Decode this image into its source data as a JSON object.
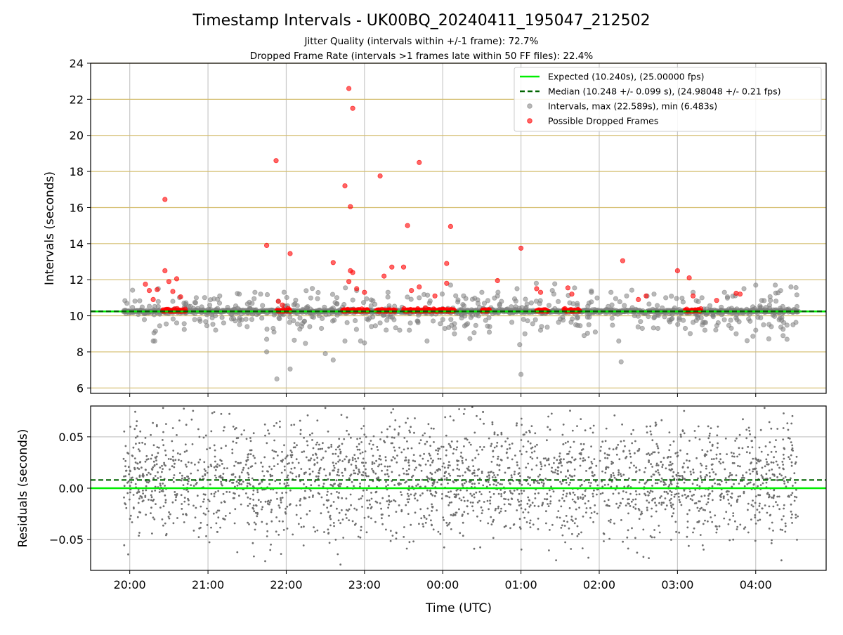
{
  "chart_data": [
    {
      "type": "scatter",
      "panel": "top",
      "title": "Timestamp Intervals - UK00BQ_20240411_195047_212502",
      "subtitle_lines": [
        "Jitter Quality (intervals within +/-1 frame): 72.7%",
        "Dropped Frame Rate (intervals >1 frames late within 50 FF files): 22.4%"
      ],
      "xlabel": "",
      "ylabel": "Intervals (seconds)",
      "x_unit": "hours since 20:00 UTC",
      "xlim": [
        -0.5,
        8.9
      ],
      "ylim": [
        5.7,
        24
      ],
      "y_ticks": [
        6,
        8,
        10,
        12,
        14,
        16,
        18,
        20,
        22,
        24
      ],
      "y_grid": true,
      "x_grid": true,
      "expected": 10.24,
      "median": 10.248,
      "legend_position": "upper right",
      "legend": [
        "Expected (10.240s), (25.00000 fps)",
        "Median (10.248 +/- 0.099 s), (24.98048 +/- 0.21 fps)",
        "Intervals, max (22.589s), min (6.483s)",
        "Possible Dropped Frames"
      ],
      "x_range_data": [
        -0.08,
        4.55
      ],
      "series": [
        {
          "name": "Intervals, max (22.589s), min (6.483s)",
          "color": "#808080",
          "points": [
            [
              0.3,
              8.6
            ],
            [
              0.32,
              8.6
            ],
            [
              1.75,
              8.7
            ],
            [
              1.75,
              8.0
            ],
            [
              1.88,
              6.5
            ],
            [
              2.05,
              7.05
            ],
            [
              2.5,
              7.9
            ],
            [
              2.6,
              7.55
            ],
            [
              2.75,
              8.6
            ],
            [
              2.95,
              8.6
            ],
            [
              3.0,
              8.5
            ],
            [
              3.8,
              8.6
            ],
            [
              4.15,
              9.0
            ],
            [
              5.0,
              6.75
            ],
            [
              5.95,
              9.1
            ],
            [
              6.25,
              8.6
            ],
            [
              6.28,
              7.45
            ],
            [
              6.55,
              9.3
            ],
            [
              6.75,
              9.3
            ],
            [
              7.1,
              9.3
            ],
            [
              7.35,
              9.2
            ],
            [
              7.75,
              9.0
            ],
            [
              8.0,
              9.2
            ],
            [
              8.35,
              8.9
            ],
            [
              8.4,
              8.7
            ],
            [
              0.6,
              9.6
            ],
            [
              0.9,
              9.7
            ],
            [
              1.2,
              9.6
            ],
            [
              1.5,
              9.4
            ],
            [
              2.3,
              9.4
            ],
            [
              2.45,
              9.3
            ],
            [
              3.2,
              9.6
            ],
            [
              3.45,
              9.2
            ],
            [
              4.3,
              9.5
            ],
            [
              4.6,
              9.4
            ],
            [
              5.05,
              9.0
            ],
            [
              5.25,
              9.2
            ],
            [
              5.7,
              9.5
            ],
            [
              8.1,
              9.5
            ],
            [
              8.2,
              9.4
            ],
            [
              2.9,
              11.4
            ],
            [
              2.4,
              10.95
            ],
            [
              1.6,
              11.3
            ],
            [
              3.3,
              11.3
            ],
            [
              4.5,
              11.3
            ],
            [
              4.7,
              11.1
            ],
            [
              4.95,
              11.5
            ],
            [
              5.4,
              11.4
            ],
            [
              5.9,
              11.3
            ],
            [
              6.15,
              11.3
            ],
            [
              6.35,
              11.1
            ],
            [
              6.7,
              11.2
            ],
            [
              6.85,
              11.0
            ],
            [
              7.2,
              11.3
            ],
            [
              7.6,
              11.3
            ],
            [
              7.85,
              11.5
            ],
            [
              8.0,
              11.7
            ],
            [
              8.25,
              11.7
            ],
            [
              8.45,
              11.6
            ],
            [
              0.85,
              11.0
            ],
            [
              1.15,
              11.1
            ],
            [
              1.4,
              11.2
            ],
            [
              0.55,
              10.8
            ],
            [
              3.7,
              11.0
            ],
            [
              4.1,
              11.7
            ]
          ]
        },
        {
          "name": "Possible Dropped Frames",
          "color": "#ff0000",
          "points": [
            [
              0.2,
              11.75
            ],
            [
              0.25,
              11.4
            ],
            [
              0.3,
              10.9
            ],
            [
              0.35,
              11.45
            ],
            [
              0.45,
              16.45
            ],
            [
              0.45,
              12.5
            ],
            [
              0.5,
              11.9
            ],
            [
              0.55,
              11.35
            ],
            [
              0.6,
              12.05
            ],
            [
              0.65,
              11.05
            ],
            [
              1.75,
              13.9
            ],
            [
              1.87,
              18.6
            ],
            [
              1.9,
              10.8
            ],
            [
              1.95,
              10.6
            ],
            [
              2.05,
              13.45
            ],
            [
              2.6,
              12.95
            ],
            [
              2.75,
              17.2
            ],
            [
              2.8,
              22.6
            ],
            [
              2.82,
              16.05
            ],
            [
              2.85,
              21.5
            ],
            [
              2.82,
              12.5
            ],
            [
              2.85,
              12.4
            ],
            [
              2.8,
              11.9
            ],
            [
              2.9,
              11.5
            ],
            [
              3.0,
              11.3
            ],
            [
              3.2,
              17.75
            ],
            [
              3.25,
              12.2
            ],
            [
              3.35,
              12.7
            ],
            [
              3.5,
              12.7
            ],
            [
              3.55,
              15.0
            ],
            [
              3.6,
              11.4
            ],
            [
              3.7,
              11.6
            ],
            [
              3.7,
              18.5
            ],
            [
              3.9,
              11.1
            ],
            [
              4.05,
              12.9
            ],
            [
              4.1,
              14.95
            ],
            [
              4.05,
              11.8
            ],
            [
              4.7,
              11.95
            ],
            [
              5.0,
              13.75
            ],
            [
              5.2,
              11.5
            ],
            [
              5.25,
              11.3
            ],
            [
              5.6,
              11.55
            ],
            [
              5.65,
              11.2
            ],
            [
              6.3,
              13.05
            ],
            [
              6.5,
              10.9
            ],
            [
              6.6,
              11.1
            ],
            [
              7.0,
              12.5
            ],
            [
              7.15,
              12.1
            ],
            [
              7.2,
              11.1
            ],
            [
              7.5,
              10.85
            ],
            [
              7.75,
              11.25
            ],
            [
              7.8,
              11.2
            ]
          ],
          "clusters_hours": [
            [
              0.42,
              0.72
            ],
            [
              1.88,
              2.05
            ],
            [
              2.72,
              3.05
            ],
            [
              3.15,
              3.4
            ],
            [
              3.5,
              4.15
            ],
            [
              4.5,
              4.6
            ],
            [
              5.2,
              5.35
            ],
            [
              5.55,
              5.75
            ],
            [
              7.1,
              7.3
            ]
          ]
        }
      ]
    },
    {
      "type": "scatter",
      "panel": "bottom",
      "xlabel": "Time (UTC)",
      "ylabel": "Residuals (seconds)",
      "xlim": [
        -0.5,
        8.9
      ],
      "ylim": [
        -0.08,
        0.08
      ],
      "y_ticks": [
        -0.05,
        0.0,
        0.05
      ],
      "y_tick_labels": [
        "−0.05",
        "0.00",
        "0.05"
      ],
      "x_ticks": [
        0,
        1,
        2,
        3,
        4,
        5,
        6,
        7,
        8
      ],
      "x_tick_labels": [
        "20:00",
        "21:00",
        "22:00",
        "23:00",
        "00:00",
        "01:00",
        "02:00",
        "03:00",
        "04:00"
      ],
      "grid": true,
      "expected_residual": 0.0,
      "median_residual": 0.008,
      "residual_spread_sd": 0.028,
      "series": [
        {
          "name": "",
          "color": "#6e6e6e"
        }
      ]
    }
  ],
  "colors": {
    "expected_line": "#00ee00",
    "median_line": "#006400",
    "intervals": "#808080",
    "dropped": "#ff0000",
    "y_grid_top": "#d4bd6e",
    "x_grid": "#c8c8c8"
  }
}
